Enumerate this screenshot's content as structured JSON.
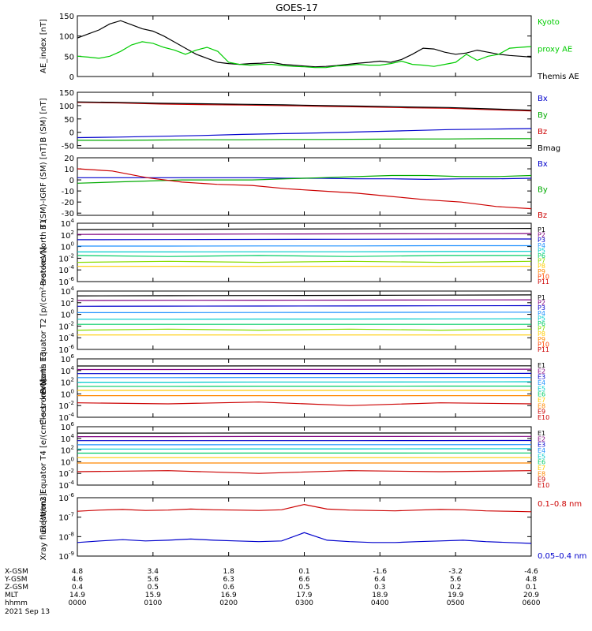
{
  "title": "GOES-17",
  "chart_data": [
    {
      "type": "line",
      "ylabel": "AE_index [nT]",
      "ylim": [
        0,
        150
      ],
      "yticks": [
        0,
        50,
        100,
        150
      ],
      "log": false,
      "series": [
        {
          "name": "Themis AE",
          "color": "#000000",
          "values": [
            95,
            105,
            115,
            130,
            138,
            128,
            118,
            112,
            100,
            85,
            70,
            55,
            45,
            35,
            32,
            30,
            32,
            33,
            35,
            30,
            28,
            26,
            24,
            25,
            27,
            30,
            33,
            35,
            38,
            35,
            42,
            55,
            70,
            68,
            60,
            55,
            58,
            65,
            60,
            55,
            52,
            50,
            48
          ]
        },
        {
          "name": "Kyoto proxy AE",
          "color": "#00cc00",
          "values": [
            50,
            48,
            45,
            50,
            62,
            78,
            86,
            82,
            72,
            65,
            55,
            65,
            72,
            62,
            35,
            30,
            28,
            30,
            30,
            27,
            25,
            24,
            22,
            22,
            26,
            27,
            30,
            28,
            28,
            32,
            38,
            30,
            28,
            25,
            30,
            35,
            55,
            40,
            50,
            55,
            70,
            72,
            74
          ]
        }
      ],
      "legend": [
        {
          "label": "Kyoto",
          "color": "#00cc00"
        },
        {
          "label": "proxy AE",
          "color": "#00cc00"
        },
        {
          "label": "Themis AE",
          "color": "#000000"
        }
      ]
    },
    {
      "type": "line",
      "ylabel": "B (SM) [nT]",
      "ylim": [
        -60,
        150
      ],
      "yticks": [
        -50,
        0,
        50,
        100,
        150
      ],
      "log": false,
      "series": [
        {
          "name": "Bx",
          "color": "#0000cc",
          "values": [
            -20,
            -18,
            -15,
            -12,
            -8,
            -5,
            -2,
            2,
            6,
            10,
            12,
            14
          ]
        },
        {
          "name": "By",
          "color": "#00aa00",
          "values": [
            -30,
            -30,
            -29,
            -28,
            -28,
            -27,
            -27,
            -26,
            -25,
            -25,
            -24,
            -24
          ]
        },
        {
          "name": "Bz",
          "color": "#cc0000",
          "values": [
            112,
            110,
            106,
            104,
            102,
            100,
            97,
            95,
            92,
            90,
            85,
            80
          ]
        },
        {
          "name": "Bmag",
          "color": "#000000",
          "values": [
            114,
            112,
            109,
            107,
            105,
            103,
            100,
            98,
            95,
            93,
            88,
            83
          ]
        }
      ],
      "legend": [
        {
          "label": "Bx",
          "color": "#0000cc"
        },
        {
          "label": "By",
          "color": "#00aa00"
        },
        {
          "label": "Bz",
          "color": "#cc0000"
        },
        {
          "label": "Bmag",
          "color": "#000000"
        }
      ]
    },
    {
      "type": "line",
      "ylabel": "B (SM)-IGRF (SM) [nT]",
      "ylim": [
        -32,
        20
      ],
      "yticks": [
        -30,
        -20,
        -10,
        0,
        10,
        20
      ],
      "log": false,
      "series": [
        {
          "name": "Bx",
          "color": "#0000cc",
          "values": [
            2,
            2,
            2,
            2,
            2,
            2,
            1.5,
            1.5,
            1,
            1,
            0.5,
            1,
            1,
            1.5
          ]
        },
        {
          "name": "By",
          "color": "#00aa00",
          "values": [
            -3,
            -2,
            -1,
            0,
            0,
            0,
            1,
            2,
            3,
            4,
            4,
            3,
            3,
            4
          ]
        },
        {
          "name": "Bz",
          "color": "#cc0000",
          "values": [
            10,
            8,
            2,
            -2,
            -4,
            -5,
            -8,
            -10,
            -12,
            -15,
            -18,
            -20,
            -24,
            -26
          ]
        }
      ],
      "legend": [
        {
          "label": "Bx",
          "color": "#0000cc"
        },
        {
          "label": "By",
          "color": "#00aa00"
        },
        {
          "label": "Bz",
          "color": "#cc0000"
        }
      ]
    },
    {
      "type": "line",
      "ylabel": "Protons North T1",
      "log": true,
      "ylim_exp": [
        -6,
        4
      ],
      "ytick_exps": [
        -6,
        -4,
        -2,
        0,
        2,
        4
      ],
      "series": [
        {
          "name": "P1",
          "color": "#000000",
          "values": [
            800,
            900,
            1000,
            1100,
            1200,
            1300
          ]
        },
        {
          "name": "P2",
          "color": "#800080",
          "values": [
            120,
            130,
            140,
            150,
            160,
            170
          ]
        },
        {
          "name": "P3",
          "color": "#0000cc",
          "values": [
            15,
            16,
            17,
            18,
            19,
            20
          ]
        },
        {
          "name": "P4",
          "color": "#1e90ff",
          "values": [
            1.2,
            1.2,
            1.3,
            1.3,
            1.4,
            1.4
          ]
        },
        {
          "name": "P5",
          "color": "#00cccc",
          "values": [
            0.12,
            0.12,
            0.13,
            0.13,
            0.14,
            0.15
          ]
        },
        {
          "name": "P6",
          "color": "#00cc66",
          "values": [
            0.03,
            0.02,
            0.03,
            0.02,
            0.03,
            0.03
          ]
        },
        {
          "name": "P7",
          "color": "#88dd00",
          "values": [
            0.002,
            0.003,
            0.002,
            0.003,
            0.002,
            0.003
          ]
        },
        {
          "name": "P8",
          "color": "#ffcc00",
          "values": [
            0.0004,
            0.0004,
            0.0004,
            0.0004,
            0.0004,
            0.0004
          ]
        }
      ],
      "legend": [
        {
          "label": "P1",
          "color": "#000000"
        },
        {
          "label": "P2",
          "color": "#800080"
        },
        {
          "label": "P3",
          "color": "#0000cc"
        },
        {
          "label": "P4",
          "color": "#1e90ff"
        },
        {
          "label": "P5",
          "color": "#00cccc"
        },
        {
          "label": "P6",
          "color": "#00cc66"
        },
        {
          "label": "P7",
          "color": "#88dd00"
        },
        {
          "label": "P8",
          "color": "#ffcc00"
        },
        {
          "label": "P9",
          "color": "#ff8800"
        },
        {
          "label": "P10",
          "color": "#ff4400"
        },
        {
          "label": "P11",
          "color": "#cc0000"
        }
      ]
    },
    {
      "type": "line",
      "ylabel": "Protons Equator T2 [p/(cm²-s-sr-keV)]",
      "log": true,
      "ylim_exp": [
        -6,
        4
      ],
      "ytick_exps": [
        -6,
        -4,
        -2,
        0,
        2,
        4
      ],
      "series": [
        {
          "name": "P1",
          "color": "#000000",
          "values": [
            1500,
            1600,
            1700,
            1800,
            2000,
            2200
          ]
        },
        {
          "name": "P2",
          "color": "#800080",
          "values": [
            250,
            260,
            270,
            280,
            300,
            320
          ]
        },
        {
          "name": "P3",
          "color": "#0000cc",
          "values": [
            25,
            26,
            27,
            28,
            30,
            32
          ]
        },
        {
          "name": "P4",
          "color": "#1e90ff",
          "values": [
            2,
            2,
            2.1,
            2.2,
            2.3,
            2.4
          ]
        },
        {
          "name": "P5",
          "color": "#00cccc",
          "values": [
            0.15,
            0.15,
            0.16,
            0.16,
            0.17,
            0.18
          ]
        },
        {
          "name": "P6",
          "color": "#00cc66",
          "values": [
            0.02,
            0.02,
            0.02,
            0.02,
            0.02,
            0.02
          ]
        },
        {
          "name": "P7",
          "color": "#88dd00",
          "values": [
            0.002,
            0.003,
            0.002,
            0.003,
            0.002,
            0.003
          ]
        },
        {
          "name": "P8",
          "color": "#ffcc00",
          "values": [
            0.0003,
            0.0003,
            0.0003,
            0.0003,
            0.0003,
            0.0003
          ]
        }
      ],
      "legend": [
        {
          "label": "P1",
          "color": "#000000"
        },
        {
          "label": "P2",
          "color": "#800080"
        },
        {
          "label": "P3",
          "color": "#0000cc"
        },
        {
          "label": "P4",
          "color": "#1e90ff"
        },
        {
          "label": "P5",
          "color": "#00cccc"
        },
        {
          "label": "P6",
          "color": "#00cc66"
        },
        {
          "label": "P7",
          "color": "#88dd00"
        },
        {
          "label": "P8",
          "color": "#ffcc00"
        },
        {
          "label": "P9",
          "color": "#ff8800"
        },
        {
          "label": "P10",
          "color": "#ff4400"
        },
        {
          "label": "P11",
          "color": "#cc0000"
        }
      ]
    },
    {
      "type": "line",
      "ylabel": "Electrons North T3",
      "log": true,
      "ylim_exp": [
        -4,
        6
      ],
      "ytick_exps": [
        -4,
        -2,
        0,
        2,
        4,
        6
      ],
      "series": [
        {
          "name": "E1",
          "color": "#000000",
          "values": [
            60000,
            60000,
            62000,
            62000,
            64000,
            65000
          ]
        },
        {
          "name": "E2",
          "color": "#800080",
          "values": [
            15000,
            15000,
            16000,
            16000,
            17000,
            17000
          ]
        },
        {
          "name": "E3",
          "color": "#0000cc",
          "values": [
            3000,
            3000,
            3100,
            3100,
            3200,
            3300
          ]
        },
        {
          "name": "E4",
          "color": "#1e90ff",
          "values": [
            600,
            600,
            620,
            620,
            640,
            650
          ]
        },
        {
          "name": "E5",
          "color": "#00cccc",
          "values": [
            100,
            100,
            110,
            110,
            115,
            120
          ]
        },
        {
          "name": "E6",
          "color": "#00cc66",
          "values": [
            20,
            20,
            21,
            21,
            22,
            22
          ]
        },
        {
          "name": "E7",
          "color": "#ffcc00",
          "values": [
            4,
            4,
            4,
            4,
            4,
            4
          ]
        },
        {
          "name": "E8",
          "color": "#ff8800",
          "values": [
            0.5,
            0.5,
            0.5,
            0.5,
            0.5,
            0.5
          ]
        },
        {
          "name": "E9",
          "color": "#cc0000",
          "values": [
            0.03,
            0.02,
            0.04,
            0.01,
            0.03,
            0.02
          ]
        }
      ],
      "legend": [
        {
          "label": "E1",
          "color": "#000000"
        },
        {
          "label": "E2",
          "color": "#800080"
        },
        {
          "label": "E3",
          "color": "#0000cc"
        },
        {
          "label": "E4",
          "color": "#1e90ff"
        },
        {
          "label": "E5",
          "color": "#00cccc"
        },
        {
          "label": "E6",
          "color": "#00cc66"
        },
        {
          "label": "E7",
          "color": "#ffcc00"
        },
        {
          "label": "E8",
          "color": "#ff8800"
        },
        {
          "label": "E9",
          "color": "#cc0000"
        },
        {
          "label": "E10",
          "color": "#cc0000"
        }
      ]
    },
    {
      "type": "line",
      "ylabel": "Electrons Equator T4 [e/(cm²-s-sr-keV)]",
      "log": true,
      "ylim_exp": [
        -4,
        6
      ],
      "ytick_exps": [
        -4,
        -2,
        0,
        2,
        4,
        6
      ],
      "series": [
        {
          "name": "E1",
          "color": "#000000",
          "values": [
            80000,
            80000,
            82000,
            82000,
            84000,
            85000
          ]
        },
        {
          "name": "E2",
          "color": "#800080",
          "values": [
            20000,
            20000,
            21000,
            21000,
            22000,
            22000
          ]
        },
        {
          "name": "E3",
          "color": "#0000cc",
          "values": [
            4000,
            4000,
            4100,
            4100,
            4200,
            4300
          ]
        },
        {
          "name": "E4",
          "color": "#1e90ff",
          "values": [
            800,
            800,
            820,
            820,
            840,
            850
          ]
        },
        {
          "name": "E5",
          "color": "#00cccc",
          "values": [
            150,
            150,
            160,
            160,
            165,
            170
          ]
        },
        {
          "name": "E6",
          "color": "#00cc66",
          "values": [
            30,
            30,
            31,
            31,
            32,
            32
          ]
        },
        {
          "name": "E7",
          "color": "#ffcc00",
          "values": [
            5,
            5,
            5,
            5,
            5,
            5
          ]
        },
        {
          "name": "E8",
          "color": "#ff8800",
          "values": [
            0.6,
            0.6,
            0.6,
            0.6,
            0.6,
            0.6
          ]
        },
        {
          "name": "E9",
          "color": "#cc0000",
          "values": [
            0.02,
            0.03,
            0.01,
            0.03,
            0.02,
            0.03
          ]
        }
      ],
      "legend": [
        {
          "label": "E1",
          "color": "#000000"
        },
        {
          "label": "E2",
          "color": "#800080"
        },
        {
          "label": "E3",
          "color": "#0000cc"
        },
        {
          "label": "E4",
          "color": "#1e90ff"
        },
        {
          "label": "E5",
          "color": "#00cccc"
        },
        {
          "label": "E6",
          "color": "#00cc66"
        },
        {
          "label": "E7",
          "color": "#ffcc00"
        },
        {
          "label": "E8",
          "color": "#ff8800"
        },
        {
          "label": "E9",
          "color": "#cc0000"
        },
        {
          "label": "E10",
          "color": "#cc0000"
        }
      ]
    },
    {
      "type": "line",
      "ylabel": "Xray flux [W/m2]",
      "log": true,
      "ylim_exp": [
        -9,
        -6
      ],
      "ytick_exps": [
        -9,
        -8,
        -7,
        -6
      ],
      "series": [
        {
          "name": "0.1-0.8 nm",
          "color": "#cc0000",
          "values": [
            2e-07,
            2.3e-07,
            2.5e-07,
            2.2e-07,
            2.3e-07,
            2.6e-07,
            2.4e-07,
            2.3e-07,
            2.2e-07,
            2.4e-07,
            4.5e-07,
            2.6e-07,
            2.3e-07,
            2.2e-07,
            2.1e-07,
            2.3e-07,
            2.5e-07,
            2.4e-07,
            2.1e-07,
            2e-07,
            1.9e-07
          ]
        },
        {
          "name": "0.05-0.4 nm",
          "color": "#0000cc",
          "values": [
            5e-09,
            6e-09,
            7e-09,
            6e-09,
            6.5e-09,
            7.5e-09,
            6.5e-09,
            6e-09,
            5.5e-09,
            6e-09,
            1.6e-08,
            6.5e-09,
            5.5e-09,
            5e-09,
            5e-09,
            5.5e-09,
            6e-09,
            6.5e-09,
            5.5e-09,
            5e-09,
            4.5e-09
          ]
        }
      ],
      "legend": [
        {
          "label": "0.1–0.8 nm",
          "color": "#cc0000"
        },
        {
          "label": "0.05–0.4 nm",
          "color": "#0000cc"
        }
      ]
    }
  ],
  "x_axis": {
    "ticks_hhmm": [
      "0000",
      "0100",
      "0200",
      "0300",
      "0400",
      "0500",
      "0600"
    ],
    "rows": [
      {
        "label": "X-GSM",
        "values": [
          "4.8",
          "3.4",
          "1.8",
          "0.1",
          "-1.6",
          "-3.2",
          "-4.6"
        ]
      },
      {
        "label": "Y-GSM",
        "values": [
          "4.6",
          "5.6",
          "6.3",
          "6.6",
          "6.4",
          "5.6",
          "4.8"
        ]
      },
      {
        "label": "Z-GSM",
        "values": [
          "0.4",
          "0.5",
          "0.6",
          "0.5",
          "0.3",
          "0.2",
          "0.1"
        ]
      },
      {
        "label": "MLT",
        "values": [
          "14.9",
          "15.9",
          "16.9",
          "17.9",
          "18.9",
          "19.9",
          "20.9"
        ]
      },
      {
        "label": "hhmm",
        "values": [
          "0000",
          "0100",
          "0200",
          "0300",
          "0400",
          "0500",
          "0600"
        ]
      }
    ],
    "date": "2021 Sep 13"
  }
}
